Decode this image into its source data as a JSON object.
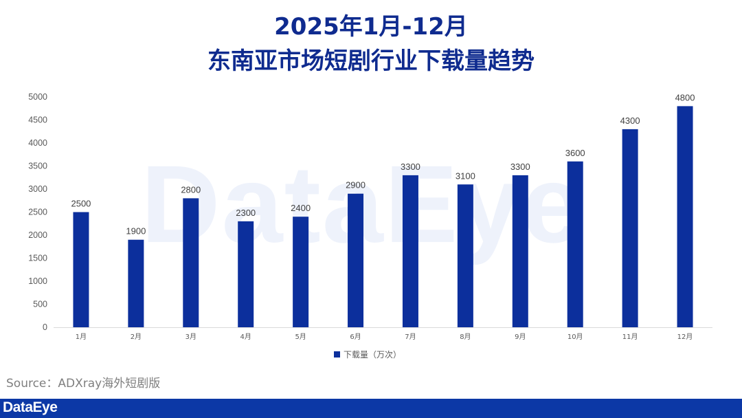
{
  "title_line1": "2025年1月-12月",
  "title_line2": "东南亚市场短剧行业下载量趋势",
  "watermark": "DataEye",
  "source": "Source：ADXray海外短剧版",
  "brand": "DataEye",
  "colors": {
    "bar": "#0c2f9c",
    "title": "#0f2b8f",
    "footer": "#0c38a6"
  },
  "chart_data": {
    "type": "bar",
    "categories": [
      "1月",
      "2月",
      "3月",
      "4月",
      "5月",
      "6月",
      "7月",
      "8月",
      "9月",
      "10月",
      "11月",
      "12月"
    ],
    "series": [
      {
        "name": "下载量（万次）",
        "values": [
          2500,
          1900,
          2800,
          2300,
          2400,
          2900,
          3300,
          3100,
          3300,
          3600,
          4300,
          4800
        ]
      }
    ],
    "yticks": [
      0,
      500,
      1000,
      1500,
      2000,
      2500,
      3000,
      3500,
      4000,
      4500,
      5000
    ],
    "ylim": [
      0,
      5000
    ],
    "grid": false,
    "legend": "bottom",
    "data_labels": true
  }
}
